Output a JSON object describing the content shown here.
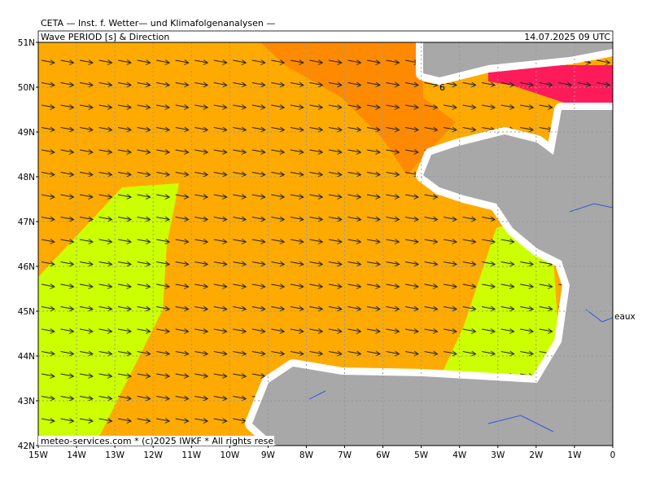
{
  "header": {
    "source": "CETA — Inst. f. Wetter— und Klimafolgenanalysen —",
    "title": "Wave PERIOD [s] & Direction",
    "datetime": "14.07.2025 09 UTC"
  },
  "map": {
    "lat_labels": [
      "51N",
      "50N",
      "49N",
      "48N",
      "47N",
      "46N",
      "45N",
      "44N",
      "43N",
      "42N"
    ],
    "lon_labels": [
      "15W",
      "14W",
      "13W",
      "12W",
      "11W",
      "10W",
      "9W",
      "8W",
      "7W",
      "6W",
      "5W",
      "4W",
      "3W",
      "2W",
      "1W",
      "0"
    ],
    "contour_label": "6",
    "place_label": "eaux"
  },
  "footer": "meteo-services.com * (c)2025 IWKF * All rights rese"
}
